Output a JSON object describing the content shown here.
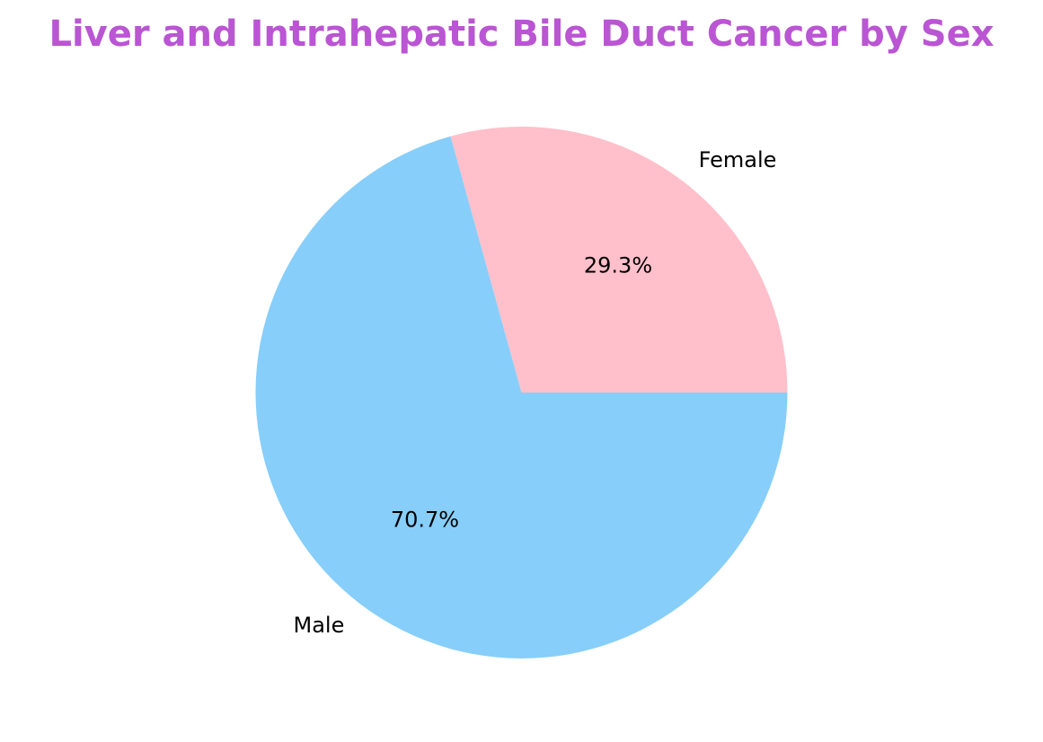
{
  "chart_data": {
    "type": "pie",
    "title": "Liver and Intrahepatic Bile Duct Cancer by Sex",
    "title_color": "#BA55D3",
    "start_angle_deg": 0,
    "direction": "counterclockwise",
    "slices": [
      {
        "label": "Female",
        "value": 29.3,
        "pct_label": "29.3%",
        "color": "#FFC0CB"
      },
      {
        "label": "Male",
        "value": 70.7,
        "pct_label": "70.7%",
        "color": "#87CEFA"
      }
    ],
    "legend": "none"
  }
}
